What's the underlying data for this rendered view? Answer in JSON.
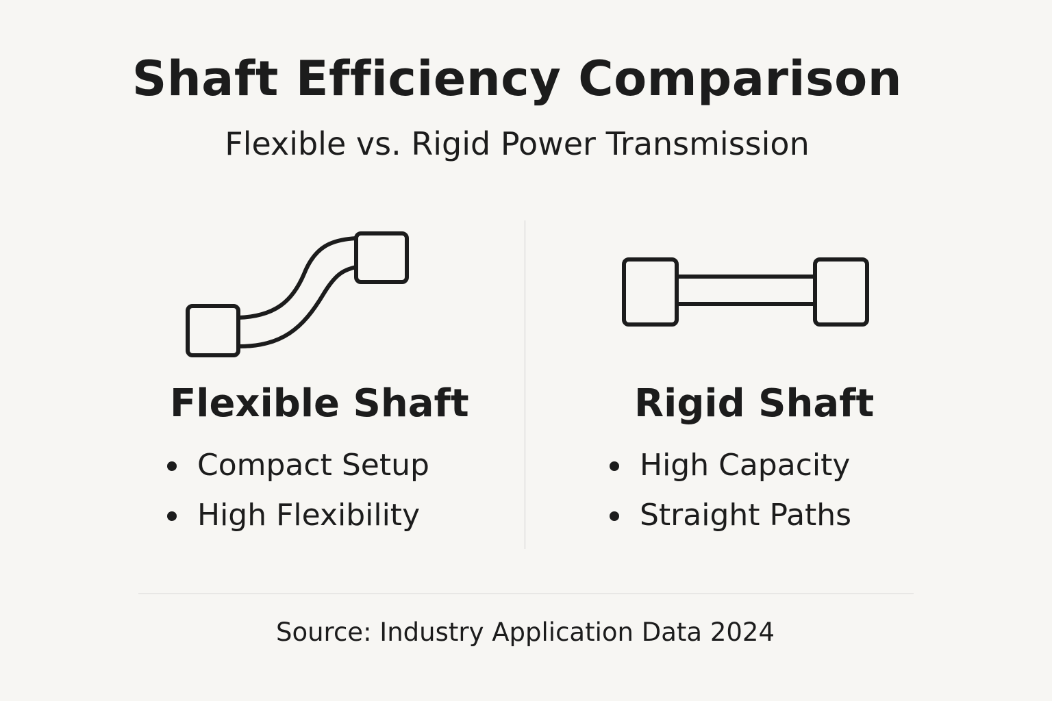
{
  "title": "Shaft Efficiency Comparison",
  "subtitle": "Flexible vs. Rigid Power Transmission",
  "flexible": {
    "icon": "flexible-shaft-icon",
    "heading": "Flexible Shaft",
    "bullets": [
      "Compact Setup",
      "High Flexibility"
    ]
  },
  "rigid": {
    "icon": "rigid-shaft-icon",
    "heading": "Rigid Shaft",
    "bullets": [
      "High Capacity",
      "Straight Paths"
    ]
  },
  "source": "Source: Industry Application Data 2024",
  "colors": {
    "background": "#f7f6f3",
    "ink": "#1c1c1c",
    "divider": "#cfcfcf"
  }
}
